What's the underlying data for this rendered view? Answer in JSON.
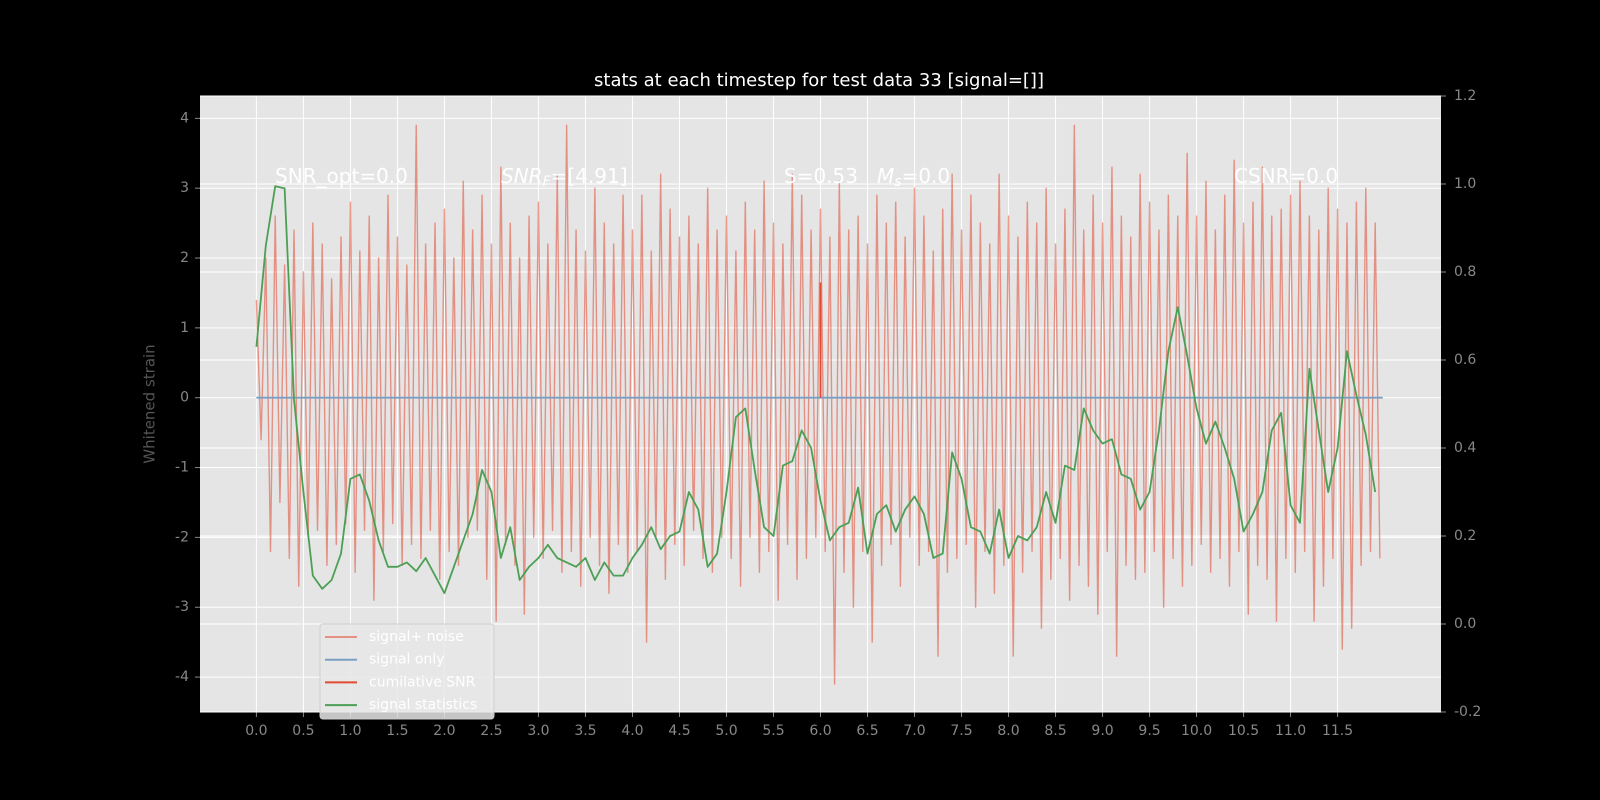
{
  "chart_data": {
    "type": "line",
    "title": "stats at each timestep for test data 33 [signal=[]]",
    "y_label": "Whitened strain",
    "xlim": [
      -0.6,
      12.6
    ],
    "xticks": [
      {
        "value": 0,
        "label": "0.0"
      },
      0.5,
      {
        "value": 1,
        "label": "1.0"
      },
      1.5,
      {
        "value": 2,
        "label": "2.0"
      },
      2.5,
      {
        "value": 3,
        "label": "3.0"
      },
      3.5,
      {
        "value": 4,
        "label": "4.0"
      },
      4.5,
      {
        "value": 5,
        "label": "5.0"
      },
      5.5,
      {
        "value": 6,
        "label": "6.0"
      },
      6.5,
      {
        "value": 7,
        "label": "7.0"
      },
      7.5,
      {
        "value": 8,
        "label": "8.0"
      },
      8.5,
      {
        "value": 9,
        "label": "9.0"
      },
      9.5,
      {
        "value": 10,
        "label": "10.0"
      },
      10.5,
      {
        "value": 11,
        "label": "11.0"
      },
      11.5
    ],
    "ylim": [
      -4.5,
      4.32
    ],
    "yticks": [
      -4,
      -3,
      -2,
      -1,
      0,
      1,
      2,
      3,
      4
    ],
    "y2lim": [
      -0.2,
      1.2
    ],
    "y2ticks": [
      -0.2,
      {
        "value": 0,
        "label": "0.0"
      },
      0.2,
      0.4,
      0.6,
      0.8,
      {
        "value": 1,
        "label": "1.0"
      },
      1.2
    ],
    "grid": true,
    "legend": "lower left",
    "annotations": [
      [
        {
          "text": "SNR_opt=0.0"
        }
      ],
      [
        {
          "text": "SNR",
          "italic": true
        },
        {
          "text": "F",
          "italic": true,
          "sub": true
        },
        {
          "text": "=[4.91]"
        }
      ],
      [
        {
          "text": "S=0.53"
        }
      ],
      [
        {
          "text": "M",
          "italic": true
        },
        {
          "text": "s",
          "italic": true,
          "sub": true
        },
        {
          "text": "=0.0"
        }
      ],
      [
        {
          "text": "CSNR=0.0"
        }
      ]
    ],
    "series": [
      {
        "name": "signal+ noise",
        "color": "#e24a33",
        "opacity": 0.55,
        "x": [
          0,
          0.05,
          0.1,
          0.15,
          0.2,
          0.25,
          0.3,
          0.35,
          0.4,
          0.45,
          0.5,
          0.55,
          0.6,
          0.65,
          0.7,
          0.75,
          0.8,
          0.85,
          0.9,
          0.95,
          1,
          1.05,
          1.1,
          1.15,
          1.2,
          1.25,
          1.3,
          1.35,
          1.4,
          1.45,
          1.5,
          1.55,
          1.6,
          1.65,
          1.7,
          1.75,
          1.8,
          1.85,
          1.9,
          1.95,
          2,
          2.05,
          2.1,
          2.15,
          2.2,
          2.25,
          2.3,
          2.35,
          2.4,
          2.45,
          2.5,
          2.55,
          2.6,
          2.65,
          2.7,
          2.75,
          2.8,
          2.85,
          2.9,
          2.95,
          3,
          3.05,
          3.1,
          3.15,
          3.2,
          3.25,
          3.3,
          3.35,
          3.4,
          3.45,
          3.5,
          3.55,
          3.6,
          3.65,
          3.7,
          3.75,
          3.8,
          3.85,
          3.9,
          3.95,
          4,
          4.05,
          4.1,
          4.15,
          4.2,
          4.25,
          4.3,
          4.35,
          4.4,
          4.45,
          4.5,
          4.55,
          4.6,
          4.65,
          4.7,
          4.75,
          4.8,
          4.85,
          4.9,
          4.95,
          5,
          5.05,
          5.1,
          5.15,
          5.2,
          5.25,
          5.3,
          5.35,
          5.4,
          5.45,
          5.5,
          5.55,
          5.6,
          5.65,
          5.7,
          5.75,
          5.8,
          5.85,
          5.9,
          5.95,
          6,
          6.05,
          6.1,
          6.15,
          6.2,
          6.25,
          6.3,
          6.35,
          6.4,
          6.45,
          6.5,
          6.55,
          6.6,
          6.65,
          6.7,
          6.75,
          6.8,
          6.85,
          6.9,
          6.95,
          7,
          7.05,
          7.1,
          7.15,
          7.2,
          7.25,
          7.3,
          7.35,
          7.4,
          7.45,
          7.5,
          7.55,
          7.6,
          7.65,
          7.7,
          7.75,
          7.8,
          7.85,
          7.9,
          7.95,
          8,
          8.05,
          8.1,
          8.15,
          8.2,
          8.25,
          8.3,
          8.35,
          8.4,
          8.45,
          8.5,
          8.55,
          8.6,
          8.65,
          8.7,
          8.75,
          8.8,
          8.85,
          8.9,
          8.95,
          9,
          9.05,
          9.1,
          9.15,
          9.2,
          9.25,
          9.3,
          9.35,
          9.4,
          9.45,
          9.5,
          9.55,
          9.6,
          9.65,
          9.7,
          9.75,
          9.8,
          9.85,
          9.9,
          9.95,
          10,
          10.05,
          10.1,
          10.15,
          10.2,
          10.25,
          10.3,
          10.35,
          10.4,
          10.45,
          10.5,
          10.55,
          10.6,
          10.65,
          10.7,
          10.75,
          10.8,
          10.85,
          10.9,
          10.95,
          11,
          11.05,
          11.1,
          11.15,
          11.2,
          11.25,
          11.3,
          11.35,
          11.4,
          11.45,
          11.5,
          11.55,
          11.6,
          11.65,
          11.7,
          11.75,
          11.8,
          11.85,
          11.9,
          11.95
        ],
        "values": [
          1.4,
          -0.6,
          2.0,
          -2.2,
          2.6,
          -1.5,
          1.9,
          -2.3,
          2.4,
          -2.7,
          1.8,
          -2.0,
          2.5,
          -1.9,
          2.2,
          -2.4,
          1.7,
          -2.1,
          2.3,
          -1.8,
          2.8,
          -2.5,
          2.1,
          -1.9,
          2.6,
          -2.9,
          2.0,
          -2.2,
          2.9,
          -1.8,
          2.3,
          -2.4,
          1.9,
          -2.1,
          3.9,
          -2.3,
          2.2,
          -1.9,
          2.5,
          -2.6,
          2.7,
          -2.2,
          2.0,
          -2.4,
          3.1,
          -2.0,
          2.4,
          -1.9,
          2.9,
          -2.6,
          2.2,
          -3.2,
          3.3,
          -2.1,
          2.5,
          -2.4,
          2.0,
          -3.1,
          2.6,
          -2.0,
          2.8,
          -2.3,
          2.2,
          -1.9,
          3.2,
          -2.5,
          3.9,
          -2.2,
          2.4,
          -2.7,
          2.1,
          -2.0,
          3.0,
          -2.4,
          2.5,
          -2.8,
          2.2,
          -2.1,
          2.9,
          -2.5,
          2.4,
          -2.2,
          2.9,
          -3.5,
          2.1,
          -2.0,
          3.2,
          -2.6,
          2.7,
          -2.1,
          2.3,
          -2.4,
          2.6,
          -1.9,
          2.2,
          -2.3,
          3.0,
          -2.5,
          2.4,
          -2.0,
          2.6,
          -2.3,
          2.1,
          -2.7,
          2.8,
          -2.0,
          2.4,
          -2.5,
          3.1,
          -2.2,
          2.5,
          -2.9,
          2.2,
          -2.1,
          3.2,
          -2.6,
          2.9,
          -2.3,
          2.4,
          -2.0,
          2.7,
          -2.2,
          2.3,
          -4.1,
          3.1,
          -2.5,
          2.4,
          -3.0,
          2.6,
          -2.2,
          2.2,
          -3.5,
          2.9,
          -2.4,
          2.5,
          -2.1,
          2.8,
          -2.7,
          2.3,
          -2.0,
          3.0,
          -2.4,
          2.6,
          -2.2,
          2.1,
          -3.7,
          2.7,
          -2.5,
          3.2,
          -2.3,
          2.4,
          -2.1,
          2.9,
          -3.0,
          2.5,
          -2.2,
          2.2,
          -2.8,
          3.2,
          -2.4,
          2.6,
          -3.7,
          2.3,
          -2.5,
          2.8,
          -2.2,
          2.5,
          -3.3,
          3.0,
          -2.6,
          2.2,
          -2.3,
          2.7,
          -2.9,
          3.9,
          -2.4,
          2.4,
          -2.7,
          2.9,
          -3.1,
          2.5,
          -2.2,
          3.3,
          -3.7,
          2.6,
          -2.4,
          2.3,
          -2.6,
          3.2,
          -2.5,
          2.8,
          -2.2,
          2.4,
          -3.0,
          2.9,
          -2.3,
          2.6,
          -2.7,
          3.5,
          -2.4,
          2.6,
          -2.1,
          3.1,
          -2.5,
          2.4,
          -2.3,
          2.9,
          -2.7,
          3.4,
          -2.2,
          2.5,
          -3.1,
          2.8,
          -2.4,
          3.3,
          -2.6,
          2.6,
          -3.2,
          2.7,
          -2.3,
          2.9,
          -2.5,
          3.1,
          -2.2,
          2.6,
          -3.2,
          2.4,
          -2.7,
          3.0,
          -2.3,
          2.7,
          -3.6,
          2.5,
          -3.3,
          2.8,
          -2.4,
          3.0,
          -2.2,
          2.5,
          -2.3
        ]
      },
      {
        "name": "signal only",
        "color": "#7a9fc4",
        "x": [
          0,
          11.98
        ],
        "values": [
          0,
          0
        ]
      },
      {
        "name": "cumilative SNR",
        "color": "#e24a33",
        "x": [
          6.0,
          6.0
        ],
        "values": [
          1.65,
          0
        ]
      },
      {
        "name": "signal statistics",
        "color": "#4c9f55",
        "axis": "y2",
        "x": [
          0,
          0.1,
          0.2,
          0.3,
          0.4,
          0.5,
          0.6,
          0.7,
          0.8,
          0.9,
          1,
          1.1,
          1.2,
          1.3,
          1.4,
          1.5,
          1.6,
          1.7,
          1.8,
          1.9,
          2,
          2.1,
          2.2,
          2.3,
          2.4,
          2.5,
          2.6,
          2.7,
          2.8,
          2.9,
          3,
          3.1,
          3.2,
          3.3,
          3.4,
          3.5,
          3.6,
          3.7,
          3.8,
          3.9,
          4,
          4.1,
          4.2,
          4.3,
          4.4,
          4.5,
          4.6,
          4.7,
          4.8,
          4.9,
          5,
          5.1,
          5.2,
          5.3,
          5.4,
          5.5,
          5.6,
          5.7,
          5.8,
          5.9,
          6,
          6.1,
          6.2,
          6.3,
          6.4,
          6.5,
          6.6,
          6.7,
          6.8,
          6.9,
          7,
          7.1,
          7.2,
          7.3,
          7.4,
          7.5,
          7.6,
          7.7,
          7.8,
          7.9,
          8,
          8.1,
          8.2,
          8.3,
          8.4,
          8.5,
          8.6,
          8.7,
          8.8,
          8.9,
          9,
          9.1,
          9.2,
          9.3,
          9.4,
          9.5,
          9.6,
          9.7,
          9.8,
          9.9,
          10,
          10.1,
          10.2,
          10.3,
          10.4,
          10.5,
          10.6,
          10.7,
          10.8,
          10.9,
          11,
          11.1,
          11.2,
          11.3,
          11.4,
          11.5,
          11.6,
          11.7,
          11.8,
          11.9
        ],
        "values": [
          0.63,
          0.86,
          0.995,
          0.99,
          0.51,
          0.3,
          0.11,
          0.08,
          0.1,
          0.16,
          0.33,
          0.34,
          0.28,
          0.19,
          0.13,
          0.13,
          0.14,
          0.12,
          0.15,
          0.11,
          0.07,
          0.13,
          0.19,
          0.25,
          0.35,
          0.3,
          0.15,
          0.22,
          0.1,
          0.13,
          0.15,
          0.18,
          0.15,
          0.14,
          0.13,
          0.15,
          0.1,
          0.14,
          0.11,
          0.11,
          0.15,
          0.18,
          0.22,
          0.17,
          0.2,
          0.21,
          0.3,
          0.26,
          0.13,
          0.16,
          0.3,
          0.47,
          0.49,
          0.35,
          0.22,
          0.2,
          0.36,
          0.37,
          0.44,
          0.4,
          0.28,
          0.19,
          0.22,
          0.23,
          0.31,
          0.16,
          0.25,
          0.27,
          0.21,
          0.26,
          0.29,
          0.25,
          0.15,
          0.16,
          0.39,
          0.33,
          0.22,
          0.21,
          0.16,
          0.26,
          0.15,
          0.2,
          0.19,
          0.22,
          0.3,
          0.23,
          0.36,
          0.35,
          0.49,
          0.44,
          0.41,
          0.42,
          0.34,
          0.33,
          0.26,
          0.3,
          0.44,
          0.62,
          0.72,
          0.61,
          0.49,
          0.41,
          0.46,
          0.4,
          0.33,
          0.21,
          0.25,
          0.3,
          0.44,
          0.48,
          0.27,
          0.23,
          0.58,
          0.44,
          0.3,
          0.4,
          0.62,
          0.52,
          0.43,
          0.3
        ]
      }
    ]
  }
}
